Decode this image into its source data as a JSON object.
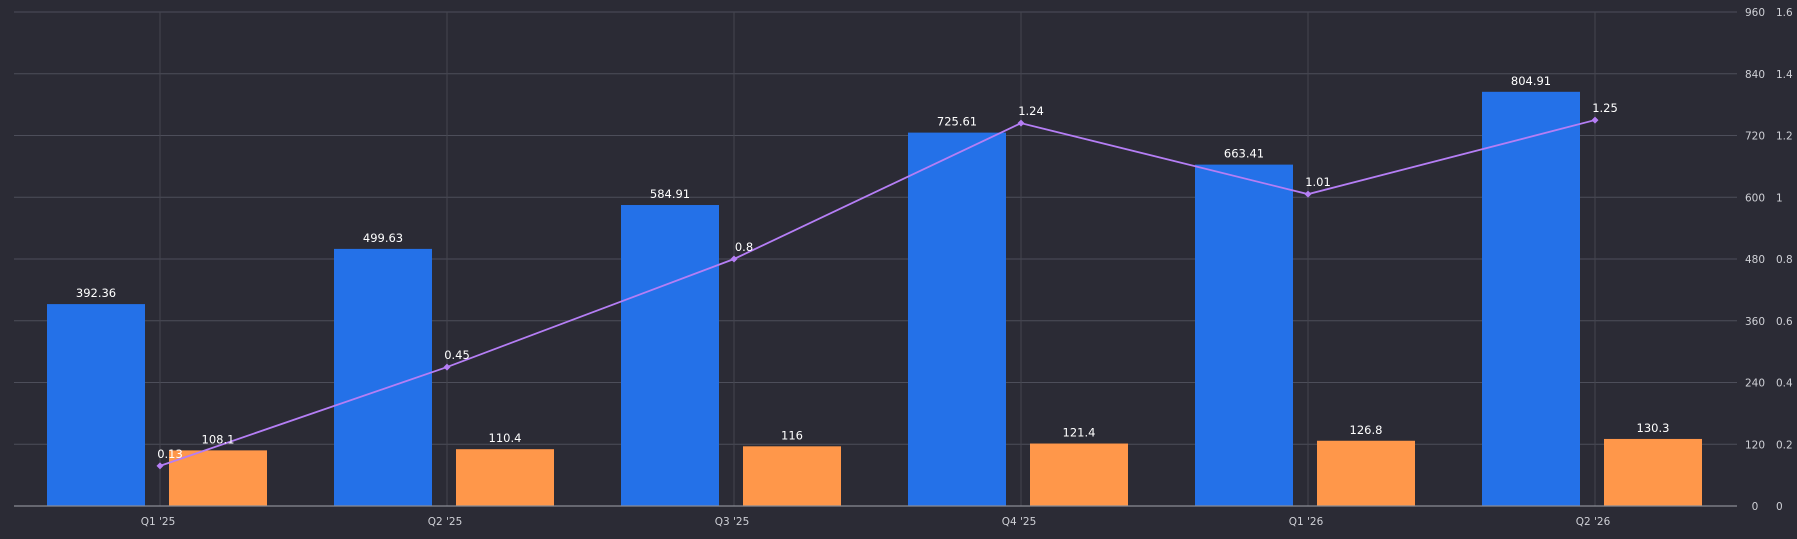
{
  "chart_data": {
    "type": "bar",
    "categories": [
      "Q1 '25",
      "Q2 '25",
      "Q3 '25",
      "Q4 '25",
      "Q1 '26",
      "Q2 '26"
    ],
    "series": [
      {
        "type": "bar",
        "axis": "left",
        "color": "#2471e8",
        "values": [
          392.36,
          499.63,
          584.91,
          725.61,
          663.41,
          804.91
        ]
      },
      {
        "type": "bar",
        "axis": "left",
        "color": "#ff974a",
        "values": [
          108.1,
          110.4,
          116,
          121.4,
          126.8,
          130.3
        ]
      },
      {
        "type": "line",
        "axis": "right",
        "color": "#b57ef5",
        "values": [
          0.13,
          0.45,
          0.8,
          1.24,
          1.01,
          1.25
        ]
      }
    ],
    "y_left": {
      "ylim": [
        0,
        960
      ],
      "ticks": [
        "0",
        "120",
        "240",
        "360",
        "480",
        "600",
        "720",
        "840",
        "960"
      ]
    },
    "y_right": {
      "ylim": [
        0,
        1.6
      ],
      "ticks": [
        "0",
        "0.2",
        "0.4",
        "0.6",
        "0.8",
        "1",
        "1.2",
        "1.4",
        "1.6"
      ]
    },
    "title": "",
    "xlabel": "",
    "ylabel": "",
    "grid": true,
    "legend": "none"
  },
  "labels": {
    "bar_a": [
      "392.36",
      "499.63",
      "584.91",
      "725.61",
      "663.41",
      "804.91"
    ],
    "bar_b": [
      "108.1",
      "110.4",
      "116",
      "121.4",
      "126.8",
      "130.3"
    ],
    "line": [
      "0.13",
      "0.45",
      "0.8",
      "1.24",
      "1.01",
      "1.25"
    ]
  },
  "colors": {
    "background": "#2b2b35",
    "grid": "#4d4e5a",
    "tick_text": "#cfd0d6",
    "label_text": "#ffffff"
  }
}
